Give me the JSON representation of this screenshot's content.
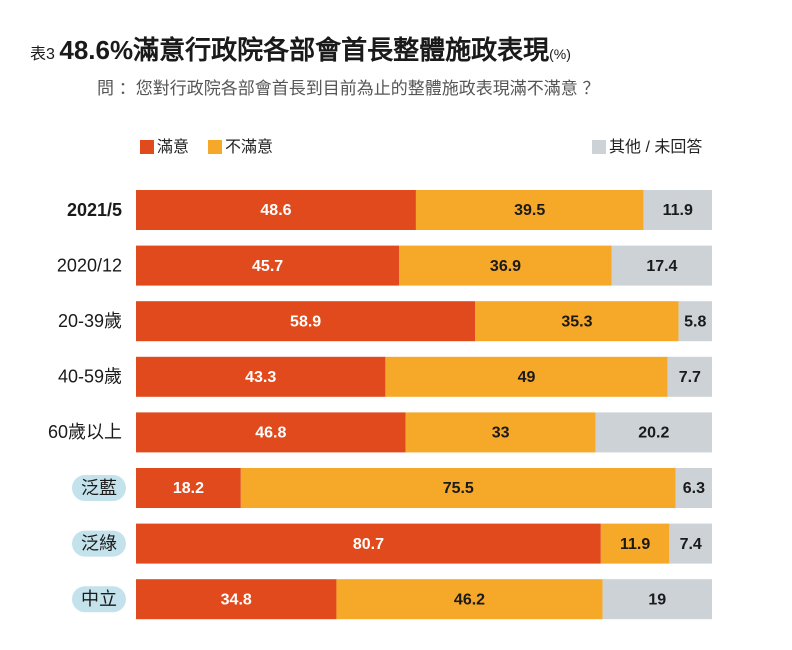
{
  "chart_data": {
    "type": "stacked-bar-horizontal",
    "title_prefix": "表3",
    "title": "48.6%滿意行政院各部會首長整體施政表現",
    "title_unit": "(%)",
    "subtitle": "問 ：您對行政院各部會首長到目前為止的整體施政表現滿不滿意 ？",
    "categories": [
      "2021/5",
      "2020/12",
      "20-39歲",
      "40-59歲",
      "60歲以上",
      "泛藍",
      "泛綠",
      "中立"
    ],
    "series": [
      {
        "name": "滿意",
        "color": "#e04a1c",
        "values": [
          48.6,
          45.7,
          58.9,
          43.3,
          46.8,
          18.2,
          80.7,
          34.8
        ]
      },
      {
        "name": "不滿意",
        "color": "#f6a829",
        "values": [
          39.5,
          36.9,
          35.3,
          49,
          33,
          75.5,
          11.9,
          46.2
        ]
      },
      {
        "name": "其他 / 未回答",
        "color": "#ccd2d6",
        "values": [
          11.9,
          17.4,
          5.8,
          7.7,
          20.2,
          6.3,
          7.4,
          19
        ]
      }
    ]
  }
}
